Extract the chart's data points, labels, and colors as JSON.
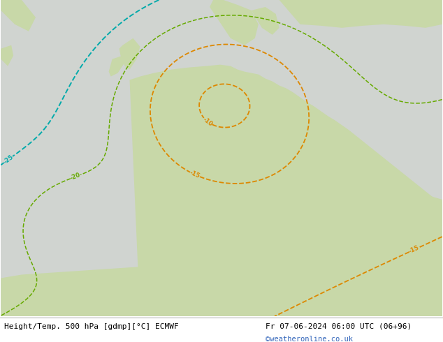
{
  "title_left": "Height/Temp. 500 hPa [gdmp][°C] ECMWF",
  "title_right": "Fr 07-06-2024 06:00 UTC (06+96)",
  "credit": "©weatheronline.co.uk",
  "fig_width": 6.34,
  "fig_height": 4.9,
  "dpi": 100,
  "ocean_color": "#d0d4d0",
  "land_color": "#c8d8a8",
  "dark_land_color": "#b8c898",
  "title_fontsize": 8.0,
  "credit_color": "#3366bb",
  "bottom_bar_color": "#ffffff",
  "height_color": "#000000",
  "temp_orange": "#dd8800",
  "temp_red": "#cc2200",
  "temp_cyan": "#00aaaa",
  "temp_green": "#66aa00"
}
